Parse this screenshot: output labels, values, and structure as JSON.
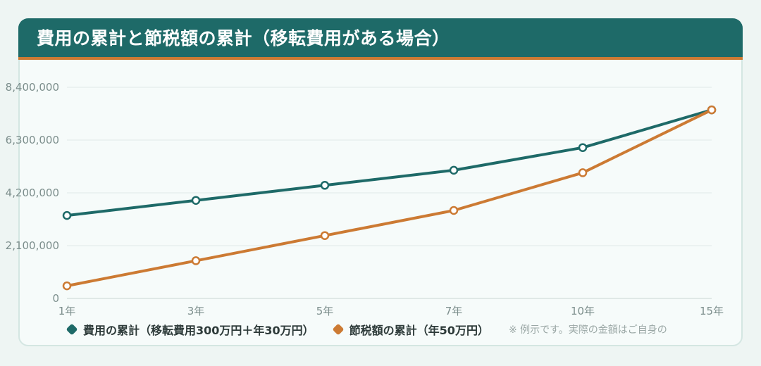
{
  "title": "費用の累計と節税額の累計（移転費用がある場合）",
  "note": "※ 例示です。実際の金額はご自身の",
  "colors": {
    "series_cost": "#1e6a68",
    "series_tax": "#cc7a33",
    "header_bg": "#1e6a68",
    "header_accent": "#cc7a33"
  },
  "chart_data": {
    "type": "line",
    "title": "費用の累計と節税額の累計（移転費用がある場合）",
    "x_labels": [
      "1年",
      "3年",
      "5年",
      "7年",
      "10年",
      "15年"
    ],
    "x": [
      1,
      3,
      5,
      7,
      10,
      15
    ],
    "y_ticks": [
      "0",
      "2,100,000",
      "4,200,000",
      "6,300,000",
      "8,400,000"
    ],
    "ylim": [
      0,
      8400000
    ],
    "grid": true,
    "legend": "bottom-left",
    "series": [
      {
        "name": "費用の累計（移転費用300万円＋年30万円）",
        "color": "#1e6a68",
        "values": [
          3300000,
          3900000,
          4500000,
          5100000,
          6000000,
          7500000
        ]
      },
      {
        "name": "節税額の累計（年50万円）",
        "color": "#cc7a33",
        "values": [
          500000,
          1500000,
          2500000,
          3500000,
          5000000,
          7500000
        ]
      }
    ]
  }
}
